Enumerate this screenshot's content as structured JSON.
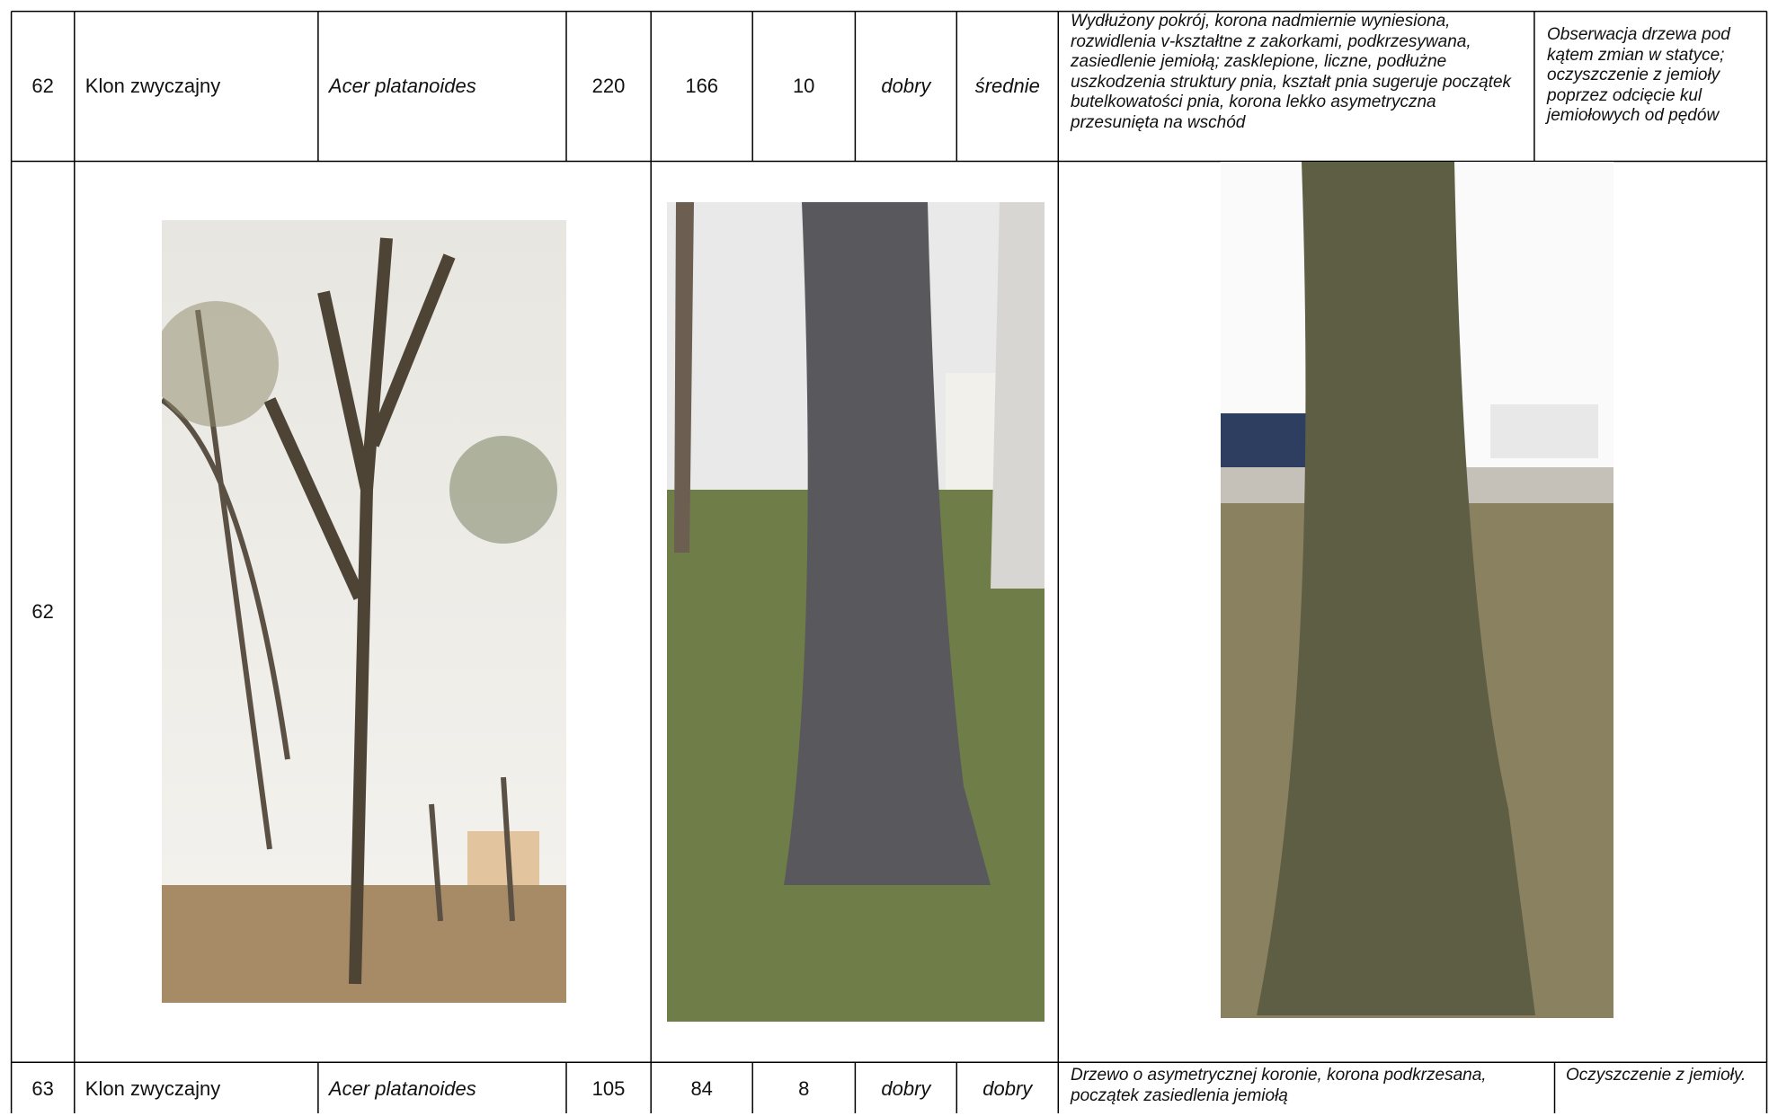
{
  "table": {
    "rows": [
      [
        "62",
        "Klon zwyczajny",
        "Acer platanoides",
        220,
        166,
        10,
        "dobry",
        "średnie",
        "Wydłużony pokrój, korona nadmiernie wyniesiona, rozwidlenia v-kształtne z zakorkami, podkrzesywana, zasiedlenie jemiołą;  zasklepione, liczne, podłużne uszkodzenia struktury pnia, kształt pnia sugeruje początek butelkowatości pnia, korona lekko asymetryczna przesunięta na wschód",
        "Obserwacja drzewa pod kątem zmian w statyce; oczyszczenie z jemioły poprzez odcięcie kul jemiołowych od pędów"
      ],
      [
        "62"
      ],
      [
        "63",
        "Klon zwyczajny",
        "Acer platanoides",
        105,
        84,
        8,
        "dobry",
        "dobry",
        "Drzewo o asymetrycznej koronie, korona podkrzesana, początek zasiedlenia jemiołą",
        "Oczyszczenie z jemioły."
      ]
    ]
  }
}
